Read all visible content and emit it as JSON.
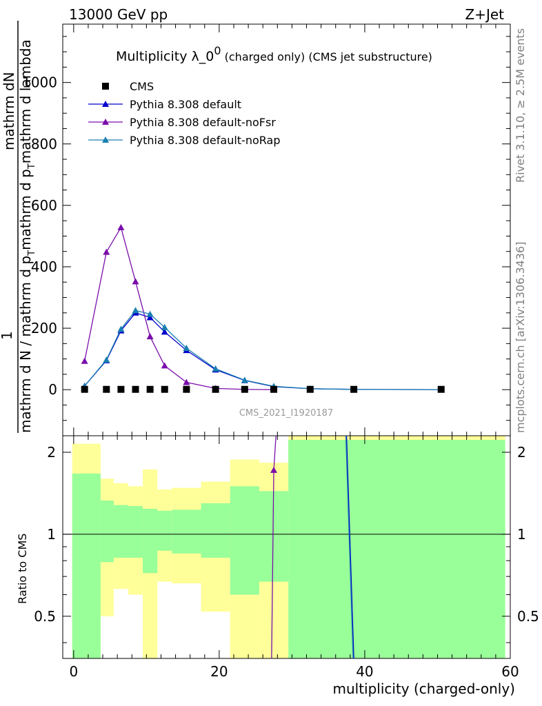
{
  "header": {
    "left": "13000 GeV pp",
    "right": "Z+Jet"
  },
  "title": {
    "main": "Multiplicity λ_0",
    "superscript": "0",
    "suffix": " (charged only) (CMS jet substructure)"
  },
  "side_labels": {
    "rivet": "Rivet 3.1.10, ≥ 2.5M events",
    "mcplots": "mcplots.cern.ch [arXiv:1306.3436]"
  },
  "watermark": "CMS_2021_I1920187",
  "main_ylabel": {
    "numerator_lead": "1",
    "numerator": "mathrm dN",
    "denominator": "mathrm d N / mathrm d p",
    "denominator_tail": "mathrm d p",
    "denominator_tail2": "mathrm d lambda",
    "subscript": "T"
  },
  "ratio_ylabel": "Ratio to CMS",
  "xlabel": "multiplicity (charged-only)",
  "legend": [
    {
      "label": "CMS",
      "color": "#000000",
      "marker": "square"
    },
    {
      "label": "Pythia 8.308 default",
      "color": "#0000cc",
      "marker": "triangle"
    },
    {
      "label": "Pythia 8.308 default-noFsr",
      "color": "#7a0dab",
      "marker": "triangle"
    },
    {
      "label": "Pythia 8.308 default-noRap",
      "color": "#1a7fb0",
      "marker": "triangle"
    }
  ],
  "chart_data": {
    "type": "line",
    "xlim": [
      -1.5,
      60
    ],
    "ylim": [
      -150,
      1190
    ],
    "ratio_ylim": [
      0.35,
      2.3
    ],
    "x_ticks": [
      0,
      20,
      40,
      60
    ],
    "y_ticks": [
      0,
      200,
      400,
      600,
      800,
      1000
    ],
    "ratio_ticks": [
      0.5,
      1,
      2
    ],
    "series": [
      {
        "name": "CMS",
        "color": "#000000",
        "x": [
          1.5,
          4.5,
          6.5,
          8.5,
          10.5,
          12.5,
          15.5,
          19.5,
          23.5,
          27.5,
          32.5,
          38.5,
          50.5
        ],
        "values": [
          1,
          1,
          1,
          1,
          1,
          1,
          1,
          1,
          1,
          1,
          1,
          1,
          1
        ]
      },
      {
        "name": "Pythia 8.308 default",
        "color": "#0000cc",
        "x": [
          1.5,
          4.5,
          6.5,
          8.5,
          10.5,
          12.5,
          15.5,
          19.5,
          23.5,
          27.5,
          32.5,
          38.5,
          50.5
        ],
        "values": [
          12,
          95,
          192,
          250,
          235,
          188,
          128,
          65,
          30,
          10,
          3,
          1,
          0
        ]
      },
      {
        "name": "Pythia 8.308 default-noFsr",
        "color": "#7a0dab",
        "x": [
          1.5,
          4.5,
          6.5,
          8.5,
          10.5,
          12.5,
          15.5,
          19.5,
          23.5,
          27.5
        ],
        "values": [
          93,
          448,
          528,
          352,
          173,
          78,
          24,
          4,
          1,
          0
        ]
      },
      {
        "name": "Pythia 8.308 default-noRap",
        "color": "#1a7fb0",
        "x": [
          1.5,
          4.5,
          6.5,
          8.5,
          10.5,
          12.5,
          15.5,
          19.5,
          23.5,
          27.5,
          32.5,
          38.5,
          50.5
        ],
        "values": [
          12,
          97,
          197,
          258,
          246,
          203,
          135,
          68,
          31,
          11,
          3,
          1,
          0
        ]
      }
    ],
    "ratio_bands": [
      {
        "x0": -0.2,
        "x1": 3.7,
        "y_lo": 0.3,
        "y_hi": 2.15,
        "g_lo": 0.3,
        "g_hi": 1.67
      },
      {
        "x0": 3.7,
        "x1": 5.5,
        "y_lo": 0.5,
        "y_hi": 1.6,
        "g_lo": 0.79,
        "g_hi": 1.33
      },
      {
        "x0": 5.5,
        "x1": 7.5,
        "y_lo": 0.63,
        "y_hi": 1.54,
        "g_lo": 0.82,
        "g_hi": 1.28
      },
      {
        "x0": 7.5,
        "x1": 9.5,
        "y_lo": 0.6,
        "y_hi": 1.5,
        "g_lo": 0.82,
        "g_hi": 1.27
      },
      {
        "x0": 9.5,
        "x1": 11.5,
        "y_lo": 0.3,
        "y_hi": 1.73,
        "g_lo": 0.72,
        "g_hi": 1.24
      },
      {
        "x0": 11.5,
        "x1": 13.5,
        "y_lo": 0.67,
        "y_hi": 1.46,
        "g_lo": 0.87,
        "g_hi": 1.22
      },
      {
        "x0": 13.5,
        "x1": 17.5,
        "y_lo": 0.66,
        "y_hi": 1.48,
        "g_lo": 0.85,
        "g_hi": 1.23
      },
      {
        "x0": 17.5,
        "x1": 21.5,
        "y_lo": 0.52,
        "y_hi": 1.56,
        "g_lo": 0.82,
        "g_hi": 1.3
      },
      {
        "x0": 21.5,
        "x1": 25.5,
        "y_lo": 0.3,
        "y_hi": 1.88,
        "g_lo": 0.6,
        "g_hi": 1.5
      },
      {
        "x0": 25.5,
        "x1": 29.5,
        "y_lo": 0.3,
        "y_hi": 1.83,
        "g_lo": 0.67,
        "g_hi": 1.44
      },
      {
        "x0": 29.5,
        "x1": 59.3,
        "y_lo": 0.3,
        "y_hi": 2.5,
        "g_lo": 0.3,
        "g_hi": 2.22
      }
    ],
    "ratio_curves": [
      {
        "name": "Pythia 8.308 default-noFsr",
        "color": "#7a0dab",
        "x": [
          27.2,
          27.5,
          27.8
        ],
        "values": [
          0.3,
          1.72,
          2.5
        ],
        "marker_x": 27.5,
        "marker_y": 1.72
      },
      {
        "name": "Pythia 8.308 default",
        "color": "#0000cc",
        "x": [
          37.5,
          38.5
        ],
        "values": [
          2.5,
          0.3
        ]
      },
      {
        "name": "Pythia 8.308 default-noRap",
        "color": "#1a7fb0",
        "x": [
          37.4,
          38.4
        ],
        "values": [
          2.5,
          0.3
        ]
      }
    ]
  }
}
